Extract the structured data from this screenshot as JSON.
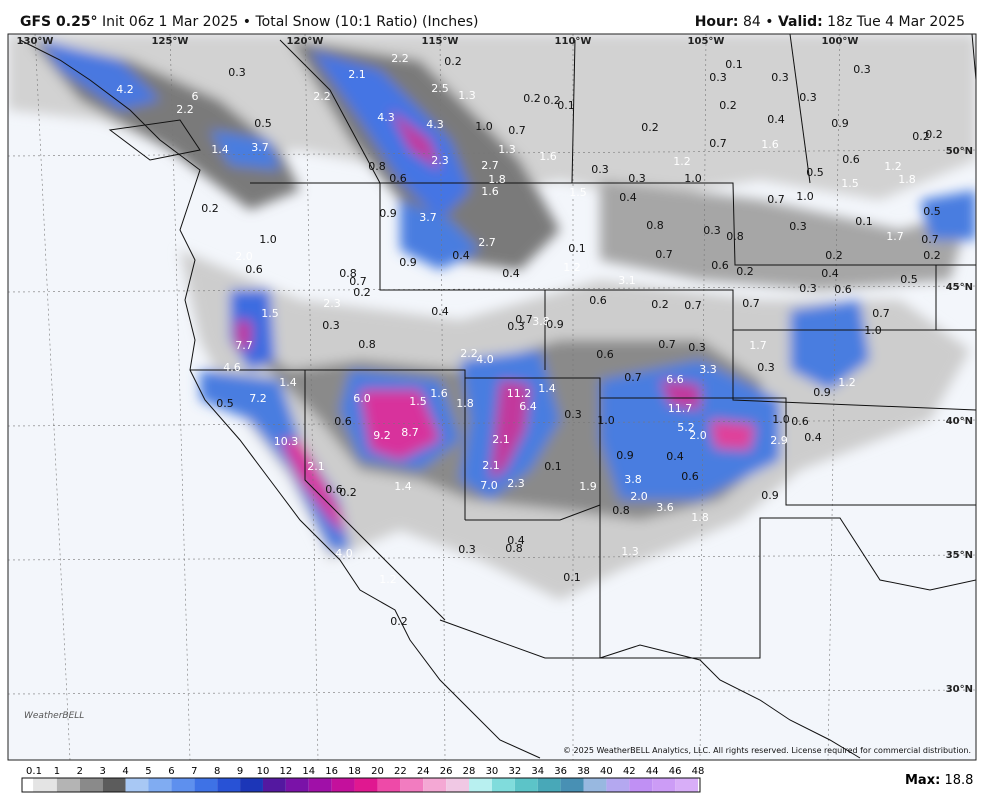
{
  "header": {
    "model": "GFS 0.25°",
    "run": "Init 06z 1 Mar 2025 • Total Snow (10:1 Ratio) (Inches)",
    "hour_label": "Hour:",
    "hour": "84",
    "sep": "•",
    "valid_label": "Valid:",
    "valid": "18z Tue 4 Mar 2025"
  },
  "map": {
    "longitudes": [
      "130°W",
      "125°W",
      "120°W",
      "115°W",
      "110°W",
      "105°W",
      "100°W"
    ],
    "latitudes": [
      "50°N",
      "45°N",
      "40°N",
      "35°N",
      "30°N"
    ],
    "snow_labels": [
      "0.3",
      "4.2",
      "6",
      "2.2",
      "1.4",
      "3.7",
      "0.5",
      "2.1",
      "2.2",
      "0.2",
      "2.2",
      "2.5",
      "1.3",
      "4.3",
      "4.3",
      "1.0",
      "0.2",
      "0.1",
      "0.2",
      "0.7",
      "1.3",
      "2.3",
      "2.7",
      "0.8",
      "0.6",
      "1.8",
      "1.6",
      "0.3",
      "1.5",
      "1.6",
      "0.4",
      "0.3",
      "1.0",
      "1.2",
      "0.2",
      "0.7",
      "1.6",
      "0.1",
      "0.3",
      "0.3",
      "0.3",
      "0.3",
      "0.2",
      "0.4",
      "0.9",
      "0.2",
      "0.2",
      "0.6",
      "1.2",
      "1.5",
      "1.8",
      "0.5",
      "0.7",
      "1.0",
      "0.3",
      "0.1",
      "1.7",
      "0.5",
      "0.7",
      "0.2",
      "0.2",
      "0.4",
      "0.6",
      "0.3",
      "0.5",
      "0.7",
      "1.0",
      "0.2",
      "1.0",
      "2.0",
      "0.6",
      "0.9",
      "3.7",
      "2.7",
      "0.4",
      "0.9",
      "0.8",
      "0.7",
      "0.2",
      "2.3",
      "0.3",
      "0.4",
      "0.4",
      "0.1",
      "1.2",
      "0.8",
      "0.7",
      "0.3",
      "0.8",
      "0.6",
      "0.2",
      "3.1",
      "0.6",
      "0.2",
      "0.7",
      "0.7",
      "1.5",
      "7.7",
      "0.8",
      "2.2",
      "4.0",
      "0.3",
      "0.7",
      "3.8",
      "0.9",
      "0.6",
      "0.7",
      "0.3",
      "1.7",
      "3.3",
      "0.3",
      "0.7",
      "6.6",
      "4.6",
      "0.5",
      "7.2",
      "1.4",
      "6.0",
      "9.2",
      "8.7",
      "0.6",
      "1.5",
      "1.6",
      "1.8",
      "11.2",
      "1.4",
      "6.4",
      "0.9",
      "1.2",
      "11.7",
      "0.3",
      "1.0",
      "5.2",
      "2.0",
      "1.0",
      "0.6",
      "0.4",
      "2.9",
      "10.3",
      "2.1",
      "2.1",
      "0.6",
      "2.1",
      "0.1",
      "0.9",
      "0.4",
      "0.6",
      "3.8",
      "7.0",
      "2.3",
      "1.4",
      "0.2",
      "1.9",
      "2.0",
      "0.9",
      "0.8",
      "3.6",
      "1.8",
      "4.0",
      "0.4",
      "0.8",
      "0.3",
      "1.3",
      "0.1",
      "1.2",
      "0.2"
    ],
    "copyright": "© 2025 WeatherBELL Analytics, LLC. All rights reserved. License required for commercial distribution.",
    "logo": "WeatherBELL"
  },
  "legend": {
    "ticks": [
      "0.1",
      "1",
      "2",
      "3",
      "4",
      "5",
      "6",
      "7",
      "8",
      "9",
      "10",
      "12",
      "14",
      "16",
      "18",
      "20",
      "22",
      "24",
      "26",
      "28",
      "30",
      "32",
      "34",
      "36",
      "38",
      "40",
      "42",
      "44",
      "46",
      "48"
    ],
    "colors": [
      "#e4e4e4",
      "#b4b4b4",
      "#8a8a8a",
      "#5c5c5c",
      "#a8c8f4",
      "#80acf2",
      "#5e90ee",
      "#3e72e6",
      "#2852d6",
      "#1c36b8",
      "#5418a0",
      "#7a12a8",
      "#a010a8",
      "#c4109c",
      "#e01890",
      "#ee4aa8",
      "#f27cc0",
      "#f4a8d4",
      "#f0c8e4",
      "#b8f0f0",
      "#80dcdc",
      "#5cc4c8",
      "#48a8b8",
      "#4890b4",
      "#98b8e0",
      "#b4a8f0",
      "#c090f4",
      "#cc9cf6",
      "#d8aef8"
    ],
    "max_label": "Max:",
    "max": "18.8"
  }
}
